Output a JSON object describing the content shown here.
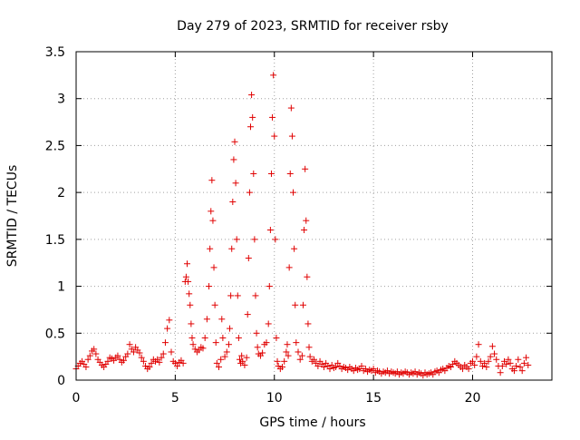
{
  "chart_data": {
    "type": "scatter",
    "title": "Day 279 of 2023, SRMTID for receiver rsby",
    "xlabel": "GPS time / hours",
    "ylabel": "SRMTID / TECUs",
    "xlim": [
      0,
      24
    ],
    "ylim": [
      0,
      3.5
    ],
    "x_ticks": [
      0,
      5,
      10,
      15,
      20
    ],
    "x_tick_labels": [
      "0",
      "5",
      "10",
      "15",
      "20"
    ],
    "y_ticks": [
      0,
      0.5,
      1,
      1.5,
      2,
      2.5,
      3,
      3.5
    ],
    "y_tick_labels": [
      "0",
      "0.5",
      "1",
      "1.5",
      "2",
      "2.5",
      "3",
      "3.5"
    ],
    "grid": true,
    "marker": "plus",
    "color": "#e00000",
    "series": [
      {
        "name": "SRMTID",
        "points": [
          [
            0.0,
            0.12
          ],
          [
            0.1,
            0.15
          ],
          [
            0.2,
            0.18
          ],
          [
            0.3,
            0.2
          ],
          [
            0.4,
            0.17
          ],
          [
            0.5,
            0.14
          ],
          [
            0.6,
            0.22
          ],
          [
            0.7,
            0.26
          ],
          [
            0.8,
            0.31
          ],
          [
            0.9,
            0.33
          ],
          [
            1.0,
            0.28
          ],
          [
            1.1,
            0.22
          ],
          [
            1.2,
            0.19
          ],
          [
            1.3,
            0.16
          ],
          [
            1.4,
            0.14
          ],
          [
            1.5,
            0.17
          ],
          [
            1.6,
            0.2
          ],
          [
            1.7,
            0.24
          ],
          [
            1.8,
            0.23
          ],
          [
            1.9,
            0.21
          ],
          [
            2.0,
            0.24
          ],
          [
            2.1,
            0.26
          ],
          [
            2.2,
            0.22
          ],
          [
            2.3,
            0.19
          ],
          [
            2.4,
            0.21
          ],
          [
            2.5,
            0.25
          ],
          [
            2.6,
            0.28
          ],
          [
            2.7,
            0.38
          ],
          [
            2.8,
            0.33
          ],
          [
            2.9,
            0.3
          ],
          [
            3.0,
            0.35
          ],
          [
            3.1,
            0.32
          ],
          [
            3.2,
            0.29
          ],
          [
            3.3,
            0.24
          ],
          [
            3.4,
            0.2
          ],
          [
            3.5,
            0.15
          ],
          [
            3.6,
            0.12
          ],
          [
            3.7,
            0.14
          ],
          [
            3.8,
            0.18
          ],
          [
            3.9,
            0.22
          ],
          [
            4.0,
            0.2
          ],
          [
            4.1,
            0.22
          ],
          [
            4.2,
            0.19
          ],
          [
            4.3,
            0.24
          ],
          [
            4.4,
            0.28
          ],
          [
            4.5,
            0.4
          ],
          [
            4.6,
            0.55
          ],
          [
            4.7,
            0.64
          ],
          [
            4.8,
            0.3
          ],
          [
            4.9,
            0.2
          ],
          [
            5.0,
            0.18
          ],
          [
            5.1,
            0.15
          ],
          [
            5.2,
            0.19
          ],
          [
            5.3,
            0.21
          ],
          [
            5.4,
            0.18
          ],
          [
            5.5,
            1.05
          ],
          [
            5.55,
            1.1
          ],
          [
            5.6,
            1.24
          ],
          [
            5.65,
            1.05
          ],
          [
            5.7,
            0.92
          ],
          [
            5.75,
            0.8
          ],
          [
            5.8,
            0.6
          ],
          [
            5.85,
            0.45
          ],
          [
            5.9,
            0.38
          ],
          [
            6.0,
            0.33
          ],
          [
            6.1,
            0.3
          ],
          [
            6.2,
            0.32
          ],
          [
            6.3,
            0.35
          ],
          [
            6.4,
            0.34
          ],
          [
            6.5,
            0.45
          ],
          [
            6.6,
            0.65
          ],
          [
            6.7,
            1.0
          ],
          [
            6.75,
            1.4
          ],
          [
            6.8,
            1.8
          ],
          [
            6.85,
            2.13
          ],
          [
            6.9,
            1.7
          ],
          [
            6.95,
            1.2
          ],
          [
            7.0,
            0.8
          ],
          [
            7.05,
            0.4
          ],
          [
            7.1,
            0.18
          ],
          [
            7.2,
            0.14
          ],
          [
            7.3,
            0.22
          ],
          [
            7.35,
            0.65
          ],
          [
            7.4,
            0.45
          ],
          [
            7.5,
            0.25
          ],
          [
            7.6,
            0.3
          ],
          [
            7.7,
            0.38
          ],
          [
            7.75,
            0.55
          ],
          [
            7.8,
            0.9
          ],
          [
            7.85,
            1.4
          ],
          [
            7.9,
            1.9
          ],
          [
            7.95,
            2.35
          ],
          [
            8.0,
            2.54
          ],
          [
            8.05,
            2.1
          ],
          [
            8.1,
            1.5
          ],
          [
            8.15,
            0.9
          ],
          [
            8.2,
            0.45
          ],
          [
            8.25,
            0.22
          ],
          [
            8.3,
            0.18
          ],
          [
            8.35,
            0.26
          ],
          [
            8.4,
            0.2
          ],
          [
            8.5,
            0.16
          ],
          [
            8.6,
            0.24
          ],
          [
            8.65,
            0.7
          ],
          [
            8.7,
            1.3
          ],
          [
            8.75,
            2.0
          ],
          [
            8.8,
            2.7
          ],
          [
            8.85,
            3.04
          ],
          [
            8.9,
            2.8
          ],
          [
            8.95,
            2.2
          ],
          [
            9.0,
            1.5
          ],
          [
            9.05,
            0.9
          ],
          [
            9.1,
            0.5
          ],
          [
            9.15,
            0.35
          ],
          [
            9.2,
            0.28
          ],
          [
            9.3,
            0.26
          ],
          [
            9.4,
            0.29
          ],
          [
            9.5,
            0.38
          ],
          [
            9.6,
            0.4
          ],
          [
            9.7,
            0.6
          ],
          [
            9.75,
            1.0
          ],
          [
            9.8,
            1.6
          ],
          [
            9.85,
            2.2
          ],
          [
            9.9,
            2.8
          ],
          [
            9.95,
            3.25
          ],
          [
            10.0,
            2.6
          ],
          [
            10.05,
            1.5
          ],
          [
            10.1,
            0.45
          ],
          [
            10.15,
            0.2
          ],
          [
            10.2,
            0.15
          ],
          [
            10.3,
            0.12
          ],
          [
            10.4,
            0.14
          ],
          [
            10.5,
            0.2
          ],
          [
            10.6,
            0.3
          ],
          [
            10.65,
            0.38
          ],
          [
            10.7,
            0.26
          ],
          [
            10.75,
            1.2
          ],
          [
            10.8,
            2.2
          ],
          [
            10.85,
            2.9
          ],
          [
            10.9,
            2.6
          ],
          [
            10.95,
            2.0
          ],
          [
            11.0,
            1.4
          ],
          [
            11.05,
            0.8
          ],
          [
            11.1,
            0.4
          ],
          [
            11.2,
            0.3
          ],
          [
            11.3,
            0.22
          ],
          [
            11.4,
            0.26
          ],
          [
            11.45,
            0.8
          ],
          [
            11.5,
            1.6
          ],
          [
            11.55,
            2.25
          ],
          [
            11.6,
            1.7
          ],
          [
            11.65,
            1.1
          ],
          [
            11.7,
            0.6
          ],
          [
            11.75,
            0.35
          ],
          [
            11.8,
            0.25
          ],
          [
            11.9,
            0.2
          ],
          [
            12.0,
            0.22
          ],
          [
            12.1,
            0.18
          ],
          [
            12.2,
            0.15
          ],
          [
            12.3,
            0.2
          ],
          [
            12.4,
            0.17
          ],
          [
            12.5,
            0.14
          ],
          [
            12.6,
            0.18
          ],
          [
            12.7,
            0.15
          ],
          [
            12.8,
            0.12
          ],
          [
            12.9,
            0.16
          ],
          [
            13.0,
            0.13
          ],
          [
            13.1,
            0.14
          ],
          [
            13.2,
            0.18
          ],
          [
            13.3,
            0.15
          ],
          [
            13.4,
            0.12
          ],
          [
            13.5,
            0.14
          ],
          [
            13.6,
            0.13
          ],
          [
            13.7,
            0.11
          ],
          [
            13.8,
            0.14
          ],
          [
            13.9,
            0.12
          ],
          [
            14.0,
            0.1
          ],
          [
            14.1,
            0.13
          ],
          [
            14.2,
            0.11
          ],
          [
            14.3,
            0.12
          ],
          [
            14.4,
            0.15
          ],
          [
            14.5,
            0.1
          ],
          [
            14.6,
            0.12
          ],
          [
            14.7,
            0.09
          ],
          [
            14.8,
            0.11
          ],
          [
            14.9,
            0.1
          ],
          [
            15.0,
            0.12
          ],
          [
            15.1,
            0.08
          ],
          [
            15.2,
            0.1
          ],
          [
            15.3,
            0.09
          ],
          [
            15.4,
            0.07
          ],
          [
            15.5,
            0.09
          ],
          [
            15.6,
            0.08
          ],
          [
            15.7,
            0.1
          ],
          [
            15.8,
            0.07
          ],
          [
            15.9,
            0.09
          ],
          [
            16.0,
            0.08
          ],
          [
            16.1,
            0.07
          ],
          [
            16.2,
            0.09
          ],
          [
            16.3,
            0.06
          ],
          [
            16.4,
            0.08
          ],
          [
            16.5,
            0.07
          ],
          [
            16.6,
            0.09
          ],
          [
            16.7,
            0.08
          ],
          [
            16.8,
            0.06
          ],
          [
            16.9,
            0.08
          ],
          [
            17.0,
            0.07
          ],
          [
            17.1,
            0.09
          ],
          [
            17.2,
            0.06
          ],
          [
            17.3,
            0.08
          ],
          [
            17.4,
            0.07
          ],
          [
            17.5,
            0.05
          ],
          [
            17.6,
            0.08
          ],
          [
            17.7,
            0.06
          ],
          [
            17.8,
            0.07
          ],
          [
            17.9,
            0.08
          ],
          [
            18.0,
            0.06
          ],
          [
            18.1,
            0.09
          ],
          [
            18.2,
            0.1
          ],
          [
            18.3,
            0.08
          ],
          [
            18.4,
            0.11
          ],
          [
            18.5,
            0.12
          ],
          [
            18.6,
            0.1
          ],
          [
            18.7,
            0.13
          ],
          [
            18.8,
            0.15
          ],
          [
            18.9,
            0.14
          ],
          [
            19.0,
            0.17
          ],
          [
            19.1,
            0.2
          ],
          [
            19.2,
            0.18
          ],
          [
            19.3,
            0.16
          ],
          [
            19.4,
            0.14
          ],
          [
            19.5,
            0.12
          ],
          [
            19.6,
            0.16
          ],
          [
            19.7,
            0.14
          ],
          [
            19.8,
            0.12
          ],
          [
            19.9,
            0.18
          ],
          [
            20.0,
            0.2
          ],
          [
            20.1,
            0.16
          ],
          [
            20.2,
            0.25
          ],
          [
            20.3,
            0.38
          ],
          [
            20.4,
            0.2
          ],
          [
            20.5,
            0.15
          ],
          [
            20.6,
            0.18
          ],
          [
            20.7,
            0.14
          ],
          [
            20.8,
            0.2
          ],
          [
            20.9,
            0.25
          ],
          [
            21.0,
            0.36
          ],
          [
            21.1,
            0.28
          ],
          [
            21.2,
            0.22
          ],
          [
            21.3,
            0.15
          ],
          [
            21.4,
            0.08
          ],
          [
            21.5,
            0.15
          ],
          [
            21.6,
            0.2
          ],
          [
            21.7,
            0.17
          ],
          [
            21.8,
            0.22
          ],
          [
            21.9,
            0.18
          ],
          [
            22.0,
            0.12
          ],
          [
            22.1,
            0.1
          ],
          [
            22.2,
            0.15
          ],
          [
            22.3,
            0.22
          ],
          [
            22.4,
            0.14
          ],
          [
            22.5,
            0.1
          ],
          [
            22.6,
            0.18
          ],
          [
            22.7,
            0.24
          ],
          [
            22.8,
            0.16
          ]
        ]
      }
    ]
  }
}
